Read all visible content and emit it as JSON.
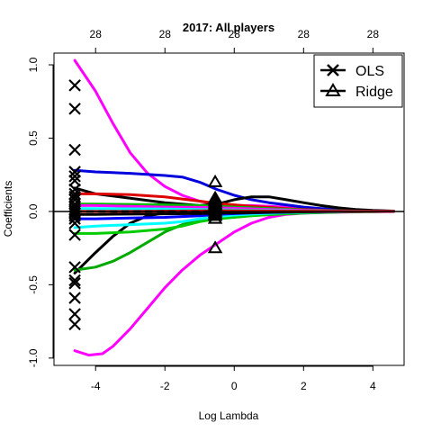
{
  "chart_data": {
    "type": "line",
    "title": "2017: All players",
    "xlabel": "Log Lambda",
    "ylabel": "Coefficients",
    "xlim": [
      -5.2,
      4.9
    ],
    "ylim": [
      -1.05,
      1.08
    ],
    "x_ticks": [
      -4,
      -2,
      0,
      2,
      4
    ],
    "x_tick_labels": [
      "-4",
      "-2",
      "0",
      "2",
      "4"
    ],
    "y_ticks": [
      -1.0,
      -0.5,
      0.0,
      0.5,
      1.0
    ],
    "y_tick_labels": [
      "-1.0",
      "-0.5",
      "0.0",
      "0.5",
      "1.0"
    ],
    "top_axis_ticks": [
      -4,
      -2,
      0,
      2,
      4
    ],
    "top_axis_labels": [
      "28",
      "28",
      "28",
      "28",
      "28"
    ],
    "grid": false,
    "legend": {
      "placement": "top-right",
      "entries": [
        {
          "label": "OLS",
          "marker": "x"
        },
        {
          "label": "Ridge",
          "marker": "triangle"
        }
      ]
    },
    "ols_x": -4.6,
    "ols_values": [
      0.86,
      0.7,
      0.42,
      0.27,
      0.24,
      0.21,
      0.15,
      0.12,
      0.1,
      0.08,
      0.05,
      0.03,
      0.01,
      0.0,
      -0.01,
      -0.03,
      -0.05,
      -0.08,
      -0.16,
      -0.38,
      -0.47,
      -0.49,
      -0.59,
      -0.7,
      -0.77
    ],
    "ridge_x": -0.55,
    "ridge_values": [
      0.2,
      0.09,
      0.08,
      0.07,
      0.06,
      0.05,
      0.04,
      0.03,
      0.02,
      0.01,
      0.0,
      -0.01,
      -0.02,
      -0.03,
      -0.05,
      -0.25
    ],
    "zero_line": {
      "y": 0,
      "style": "dashed"
    },
    "hline": {
      "y": 0
    },
    "series": [
      {
        "color": "#ff00ff",
        "x": [
          -4.6,
          -4,
          -3.5,
          -3,
          -2.5,
          -2,
          -1.5,
          -1,
          -0.5,
          0,
          0.5,
          1,
          1.5,
          2,
          2.5,
          3,
          3.5,
          4,
          4.6
        ],
        "values": [
          1.03,
          0.82,
          0.6,
          0.4,
          0.26,
          0.17,
          0.11,
          0.07,
          0.05,
          0.04,
          0.04,
          0.035,
          0.03,
          0.02,
          0.015,
          0.01,
          0.007,
          0.004,
          0.002
        ]
      },
      {
        "color": "#ff00ff",
        "x": [
          -4.6,
          -4.2,
          -3.8,
          -3.5,
          -3,
          -2.5,
          -2,
          -1.5,
          -1,
          -0.5,
          0,
          0.5,
          1,
          1.5,
          2,
          2.5,
          3,
          3.5,
          4,
          4.6
        ],
        "values": [
          -0.95,
          -0.98,
          -0.97,
          -0.92,
          -0.8,
          -0.66,
          -0.52,
          -0.4,
          -0.3,
          -0.22,
          -0.14,
          -0.08,
          -0.04,
          -0.02,
          -0.012,
          -0.008,
          -0.005,
          -0.003,
          -0.002,
          -0.001
        ]
      },
      {
        "color": "#0000dd",
        "x": [
          -4.6,
          -4,
          -3,
          -2,
          -1.5,
          -1,
          -0.5,
          0,
          0.5,
          1,
          1.5,
          2,
          2.5,
          3,
          3.5,
          4,
          4.6
        ],
        "values": [
          0.28,
          0.27,
          0.26,
          0.245,
          0.235,
          0.2,
          0.15,
          0.11,
          0.08,
          0.06,
          0.045,
          0.03,
          0.02,
          0.012,
          0.007,
          0.004,
          0.002
        ]
      },
      {
        "color": "#000000",
        "x": [
          -4.6,
          -4,
          -3,
          -2,
          -1,
          -0.5,
          0,
          0.5,
          1,
          1.5,
          2,
          2.5,
          3,
          3.5,
          4,
          4.6
        ],
        "values": [
          0.16,
          0.12,
          0.09,
          0.06,
          0.04,
          0.05,
          0.08,
          0.1,
          0.1,
          0.08,
          0.06,
          0.04,
          0.025,
          0.014,
          0.007,
          0.003
        ]
      },
      {
        "color": "#000000",
        "x": [
          -4.6,
          -4,
          -3.5,
          -3,
          -2.5,
          -2,
          -1.5,
          -1,
          -0.5,
          0,
          0.5,
          1,
          1.5,
          2,
          2.5,
          3,
          3.5,
          4,
          4.6
        ],
        "values": [
          -0.42,
          -0.28,
          -0.17,
          -0.08,
          -0.03,
          -0.01,
          0.0,
          0.0,
          -0.005,
          -0.01,
          -0.01,
          -0.008,
          -0.006,
          -0.004,
          -0.003,
          -0.002,
          -0.001,
          -0.001,
          0.0
        ]
      },
      {
        "color": "#00aa00",
        "x": [
          -4.6,
          -4,
          -3.5,
          -3,
          -2.5,
          -2,
          -1.5,
          -1,
          -0.5,
          0,
          0.5,
          1,
          1.5,
          2,
          2.5,
          3,
          3.5,
          4,
          4.6
        ],
        "values": [
          -0.4,
          -0.38,
          -0.34,
          -0.28,
          -0.21,
          -0.14,
          -0.09,
          -0.06,
          -0.045,
          -0.035,
          -0.028,
          -0.022,
          -0.016,
          -0.011,
          -0.007,
          -0.004,
          -0.002,
          -0.001,
          0.0
        ]
      },
      {
        "color": "#00cc00",
        "x": [
          -4.6,
          -4,
          -3,
          -2,
          -1.5,
          -1,
          -0.5,
          0,
          0.5,
          1,
          1.5,
          2,
          2.5,
          3,
          3.5,
          4,
          4.6
        ],
        "values": [
          -0.15,
          -0.15,
          -0.14,
          -0.12,
          -0.1,
          -0.07,
          -0.05,
          -0.04,
          -0.03,
          -0.022,
          -0.015,
          -0.01,
          -0.007,
          -0.004,
          -0.002,
          -0.001,
          0.0
        ]
      },
      {
        "color": "#00ffff",
        "x": [
          -4.6,
          -4,
          -3,
          -2,
          -1.5,
          -1,
          -0.5,
          0,
          0.5,
          1,
          1.5,
          2,
          2.5,
          3,
          3.5,
          4,
          4.6
        ],
        "values": [
          -0.11,
          -0.1,
          -0.09,
          -0.08,
          -0.07,
          -0.05,
          -0.035,
          -0.025,
          -0.018,
          -0.013,
          -0.009,
          -0.006,
          -0.004,
          -0.002,
          -0.001,
          -0.001,
          0.0
        ]
      },
      {
        "color": "#dd0000",
        "x": [
          -4.6,
          -4,
          -3,
          -2,
          -1.5,
          -1,
          -0.5,
          0,
          0.5,
          1,
          1.5,
          2,
          2.5,
          3,
          3.5,
          4,
          4.6
        ],
        "values": [
          0.12,
          0.12,
          0.115,
          0.1,
          0.085,
          0.07,
          0.055,
          0.045,
          0.035,
          0.027,
          0.02,
          0.014,
          0.009,
          0.005,
          0.003,
          0.001,
          0.0
        ]
      },
      {
        "color": "#0000ff",
        "x": [
          -4.6,
          -4,
          -3,
          -2,
          -1,
          -0.5,
          0,
          0.5,
          1,
          1.5,
          2,
          2.5,
          3,
          3.5,
          4,
          4.6
        ],
        "values": [
          -0.05,
          -0.05,
          -0.045,
          -0.04,
          -0.03,
          -0.02,
          -0.015,
          -0.01,
          -0.007,
          -0.005,
          -0.003,
          -0.002,
          -0.001,
          -0.001,
          0.0,
          0.0
        ]
      },
      {
        "color": "#00bb00",
        "x": [
          -4.6,
          -4,
          -3,
          -2,
          -1,
          -0.5,
          0,
          0.5,
          1,
          1.5,
          2,
          2.5,
          3,
          3.5,
          4,
          4.6
        ],
        "values": [
          0.05,
          0.05,
          0.048,
          0.045,
          0.04,
          0.035,
          0.03,
          0.025,
          0.02,
          0.015,
          0.01,
          0.007,
          0.004,
          0.002,
          0.001,
          0.0
        ]
      },
      {
        "color": "#ff00ff",
        "x": [
          -4.6,
          -4,
          -3,
          -2,
          -1,
          -0.5,
          0,
          0.5,
          1,
          1.5,
          2,
          2.5,
          3,
          3.5,
          4,
          4.6
        ],
        "values": [
          0.04,
          0.04,
          0.035,
          0.03,
          0.028,
          0.025,
          0.022,
          0.018,
          0.014,
          0.01,
          0.007,
          0.005,
          0.003,
          0.001,
          0.001,
          0.0
        ]
      },
      {
        "color": "#000000",
        "x": [
          -4.6,
          -4,
          -3,
          -2,
          -1,
          -0.5,
          0,
          0.5,
          1,
          1.5,
          2,
          2.5,
          3,
          3.5,
          4,
          4.6
        ],
        "values": [
          -0.02,
          -0.02,
          -0.018,
          -0.016,
          -0.014,
          -0.012,
          -0.01,
          -0.008,
          -0.006,
          -0.005,
          -0.003,
          -0.002,
          -0.001,
          -0.001,
          0.0,
          0.0
        ]
      },
      {
        "color": "#00ffff",
        "x": [
          -4.6,
          -4,
          -3,
          -2,
          -1,
          -0.5,
          0,
          0.5,
          1,
          1.5,
          2,
          2.5,
          3,
          3.5,
          4,
          4.6
        ],
        "values": [
          0.02,
          0.02,
          0.018,
          0.016,
          0.014,
          0.012,
          0.01,
          0.008,
          0.006,
          0.005,
          0.003,
          0.002,
          0.001,
          0.001,
          0.0,
          0.0
        ]
      },
      {
        "color": "#dd0000",
        "x": [
          -4.6,
          -4,
          -3,
          -2,
          -1,
          -0.5,
          0,
          0.5,
          1,
          1.5,
          2,
          2.5,
          3,
          3.5,
          4,
          4.6
        ],
        "values": [
          0.0,
          0.0,
          0.0,
          0.002,
          0.004,
          0.005,
          0.005,
          0.004,
          0.003,
          0.002,
          0.002,
          0.001,
          0.001,
          0.0,
          0.0,
          0.0
        ]
      }
    ]
  }
}
